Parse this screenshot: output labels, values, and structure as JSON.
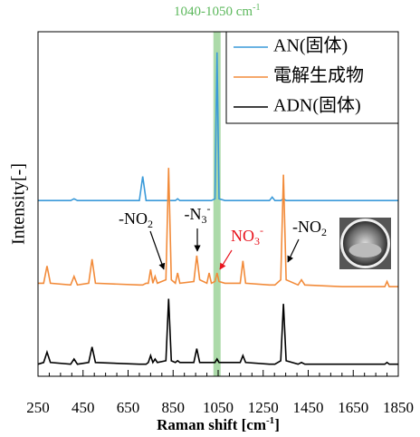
{
  "chart_data": {
    "type": "line",
    "highlight": {
      "label": "1040-1050 cm",
      "label_sup": "-1",
      "range": [
        1040,
        1050
      ],
      "color": "#9ed49a"
    },
    "x_label": "Raman shift [cm",
    "x_label_sup": "-1",
    "x_label_end": "]",
    "y_label": "Intensity[-]",
    "xlim": [
      250,
      1850
    ],
    "xticks": [
      250,
      450,
      650,
      850,
      1050,
      1250,
      1450,
      1650,
      1850
    ],
    "ylim": [
      0,
      100
    ],
    "legend": "upper right",
    "x": [
      250,
      275,
      290,
      305,
      395,
      410,
      425,
      475,
      490,
      505,
      700,
      715,
      730,
      740,
      750,
      760,
      770,
      780,
      818,
      830,
      842,
      860,
      870,
      880,
      942,
      955,
      968,
      1000,
      1010,
      1020,
      1036,
      1045,
      1054,
      1080,
      1148,
      1160,
      1172,
      1278,
      1290,
      1302,
      1328,
      1340,
      1352,
      1405,
      1420,
      1435,
      1600,
      1790,
      1800,
      1810,
      1850
    ],
    "series": [
      {
        "name": "AN(固体)",
        "color": "#3a9ad9",
        "values": [
          51,
          51,
          51,
          51,
          51,
          51.5,
          51,
          51,
          51,
          51,
          51,
          58,
          51,
          51,
          51,
          51,
          51,
          51,
          51,
          51,
          51,
          51,
          51.5,
          51,
          51,
          51,
          51,
          51,
          51,
          51,
          51.5,
          94,
          51.5,
          51,
          51,
          51,
          51,
          51,
          52,
          51,
          51,
          51.5,
          51,
          51,
          51,
          51,
          51,
          51,
          51,
          51,
          51
        ]
      },
      {
        "name": "電解生成物",
        "color": "#f28b3a",
        "values": [
          27,
          27,
          32,
          27,
          26.5,
          29,
          26.5,
          27,
          34,
          27,
          26.5,
          26.5,
          27,
          27,
          31,
          27,
          29,
          27,
          28,
          60.5,
          28,
          27,
          30,
          27,
          27.5,
          35,
          28,
          27,
          30,
          27,
          27.5,
          30,
          27.5,
          27,
          27,
          33.5,
          27,
          26.5,
          26.5,
          26.5,
          28,
          58.5,
          28,
          26.5,
          28,
          26.5,
          26,
          26,
          27.5,
          26,
          26
        ]
      },
      {
        "name": "ADN(固体)",
        "color": "#000000",
        "values": [
          3.5,
          4,
          7,
          4,
          3.5,
          5,
          3.5,
          4,
          8.5,
          4,
          3.5,
          3.5,
          3.5,
          4,
          6,
          4,
          5,
          4,
          4.5,
          22.5,
          4.5,
          4,
          4.5,
          4,
          4,
          8,
          4,
          4,
          4,
          4,
          4,
          5,
          4,
          4,
          4,
          6,
          4,
          3.5,
          3.5,
          3.5,
          4.5,
          21,
          4.5,
          3.5,
          4,
          3.5,
          3.5,
          3.5,
          4,
          3.5,
          3.5
        ]
      }
    ],
    "annotations": [
      {
        "text": "-NO",
        "sub": "2",
        "color": "#000000"
      },
      {
        "text": "-N",
        "sub": "3",
        "sup": "-",
        "color": "#000000"
      },
      {
        "text": "NO",
        "sub": "3",
        "sup": "-",
        "color": "#e8141e"
      },
      {
        "text": "-NO",
        "sub": "2",
        "color": "#000000"
      }
    ]
  }
}
